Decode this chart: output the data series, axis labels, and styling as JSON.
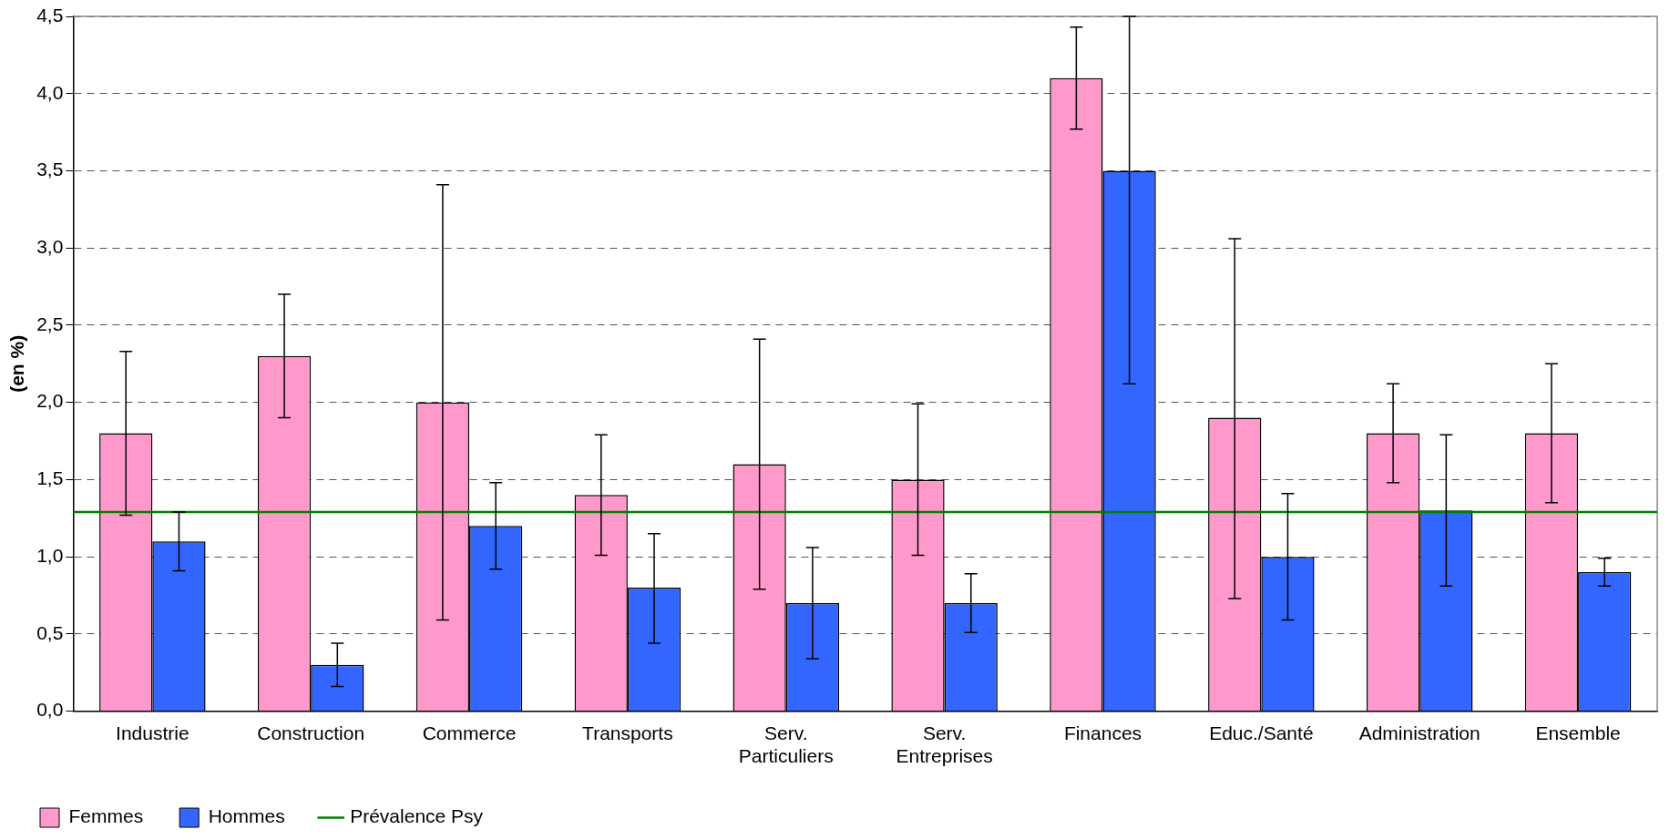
{
  "chart_data": {
    "type": "bar",
    "ylabel": "(en %)",
    "categories": [
      "Industrie",
      "Construction",
      "Commerce",
      "Transports",
      "Serv. Particuliers",
      "Serv. Entreprises",
      "Finances",
      "Educ./Santé",
      "Administration",
      "Ensemble"
    ],
    "series": [
      {
        "name": "Femmes",
        "color": "#ff99cc",
        "values": [
          1.8,
          2.3,
          2.0,
          1.4,
          1.6,
          1.5,
          4.1,
          1.9,
          1.8,
          1.8
        ],
        "errors": [
          [
            1.27,
            2.33
          ],
          [
            1.9,
            2.7
          ],
          [
            0.59,
            3.41
          ],
          [
            1.01,
            1.79
          ],
          [
            0.79,
            2.41
          ],
          [
            1.01,
            1.99
          ],
          [
            3.77,
            4.43
          ],
          [
            0.73,
            3.06
          ],
          [
            1.48,
            2.12
          ],
          [
            1.35,
            2.25
          ]
        ]
      },
      {
        "name": "Hommes",
        "color": "#3366ff",
        "values": [
          1.1,
          0.3,
          1.2,
          0.8,
          0.7,
          0.7,
          3.5,
          1.0,
          1.3,
          0.9
        ],
        "errors": [
          [
            0.91,
            1.29
          ],
          [
            0.16,
            0.44
          ],
          [
            0.92,
            1.48
          ],
          [
            0.44,
            1.15
          ],
          [
            0.34,
            1.06
          ],
          [
            0.51,
            0.89
          ],
          [
            2.12,
            4.5
          ],
          [
            0.59,
            1.41
          ],
          [
            0.81,
            1.79
          ],
          [
            0.81,
            0.99
          ]
        ]
      }
    ],
    "ylim": [
      0,
      4.5
    ],
    "yticks": [
      {
        "value": 0,
        "label": "0,0"
      },
      {
        "value": 0.5,
        "label": "0,5"
      },
      {
        "value": 1,
        "label": "1,0"
      },
      {
        "value": 1.5,
        "label": "1,5"
      },
      {
        "value": 2,
        "label": "2,0"
      },
      {
        "value": 2.5,
        "label": "2,5"
      },
      {
        "value": 3,
        "label": "3,0"
      },
      {
        "value": 3.5,
        "label": "3,5"
      },
      {
        "value": 4,
        "label": "4,0"
      },
      {
        "value": 4.5,
        "label": "4,5"
      }
    ],
    "ref_lines": [
      {
        "axis": "y",
        "value": 1.29,
        "label": "Prévalence Psy",
        "color": "#008000"
      }
    ],
    "grid": "y",
    "legend": "bottom"
  }
}
